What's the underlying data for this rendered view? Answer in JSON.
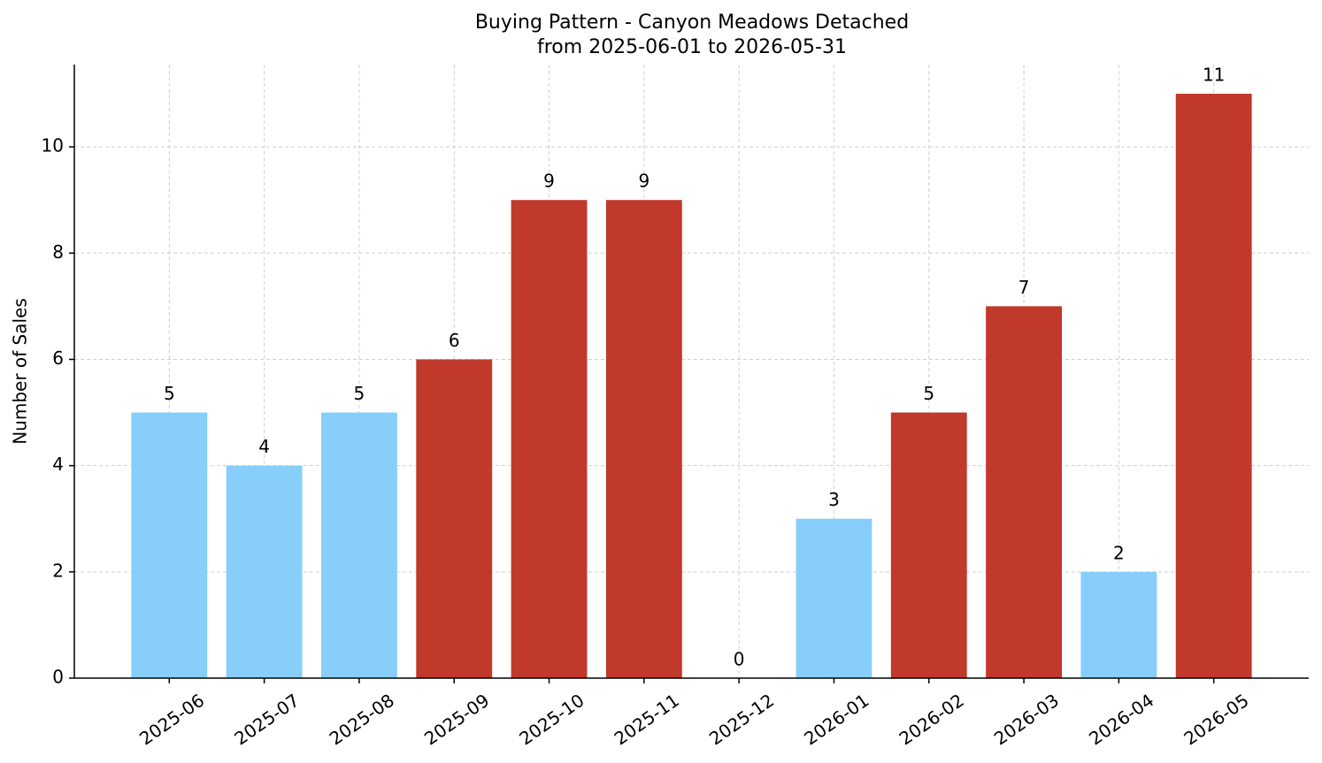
{
  "chart_data": {
    "type": "bar",
    "title": "Buying Pattern - Canyon Meadows Detached",
    "subtitle": "from 2025-06-01 to 2026-05-31",
    "y_label": "Number of Sales",
    "categories": [
      "2025-06",
      "2025-07",
      "2025-08",
      "2025-09",
      "2025-10",
      "2025-11",
      "2025-12",
      "2026-01",
      "2026-02",
      "2026-03",
      "2026-04",
      "2026-05"
    ],
    "values": [
      5,
      4,
      5,
      6,
      9,
      9,
      0,
      3,
      5,
      7,
      2,
      11
    ],
    "colors": [
      "#87cefa",
      "#87cefa",
      "#87cefa",
      "#c0392b",
      "#c0392b",
      "#c0392b",
      "#c0392b",
      "#87cefa",
      "#c0392b",
      "#c0392b",
      "#87cefa",
      "#c0392b"
    ],
    "ylim": [
      0,
      11.55
    ],
    "yticks": [
      0,
      2,
      4,
      6,
      8,
      10
    ],
    "grid": true
  }
}
